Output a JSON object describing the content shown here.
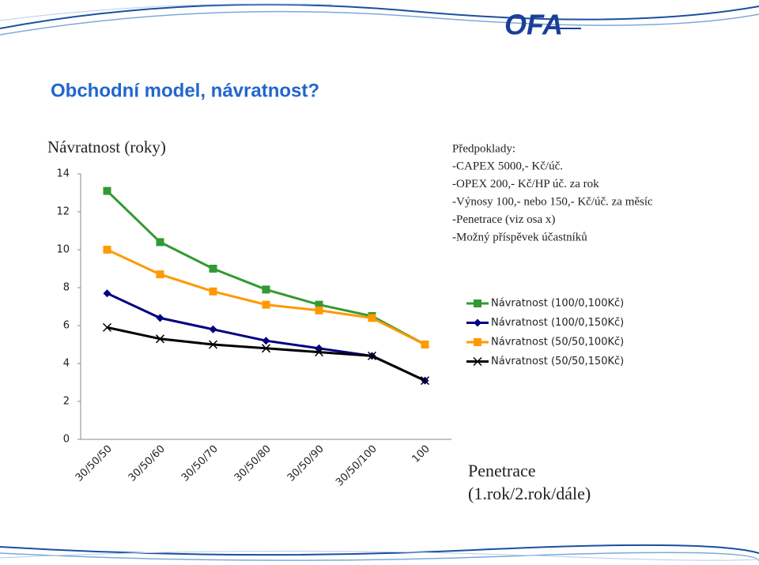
{
  "slide_title": "Obchodní model, návratnost?",
  "logo": "OFA",
  "notes": {
    "heading": "Předpoklady:",
    "lines": [
      "-CAPEX 5000,- Kč/úč.",
      "-OPEX 200,- Kč/HP úč. za rok",
      "-Výnosy 100,- nebo 150,- Kč/úč. za měsíc",
      "-Penetrace (viz osa x)",
      "-Možný příspěvek účastníků"
    ]
  },
  "chart_data": {
    "type": "line",
    "title": "Návratnost (roky)",
    "x_label": [
      "Penetrace",
      "(1.rok/2.rok/dále)"
    ],
    "categories": [
      "30/50/50",
      "30/50/60",
      "30/50/70",
      "30/50/80",
      "30/50/90",
      "30/50/100",
      "100"
    ],
    "series": [
      {
        "name": "Návratnost (100/0,100Kč)",
        "color": "#339933",
        "marker": "square",
        "values": [
          13.1,
          10.4,
          9.0,
          7.9,
          7.1,
          6.5,
          5.0
        ]
      },
      {
        "name": "Návratnost (100/0,150Kč)",
        "color": "#000080",
        "marker": "diamond",
        "values": [
          7.7,
          6.4,
          5.8,
          5.2,
          4.8,
          4.4,
          3.1
        ]
      },
      {
        "name": "Návratnost (50/50,100Kč)",
        "color": "#ff9900",
        "marker": "square",
        "values": [
          10.0,
          8.7,
          7.8,
          7.1,
          6.8,
          6.4,
          5.0
        ]
      },
      {
        "name": "Návratnost (50/50,150Kč)",
        "color": "#000000",
        "marker": "x",
        "values": [
          5.9,
          5.3,
          5.0,
          4.8,
          4.6,
          4.4,
          3.1
        ]
      }
    ],
    "ylim": [
      0,
      14
    ],
    "yticks": [
      0,
      2,
      4,
      6,
      8,
      10,
      12,
      14
    ],
    "grid": false,
    "legend": "right"
  }
}
